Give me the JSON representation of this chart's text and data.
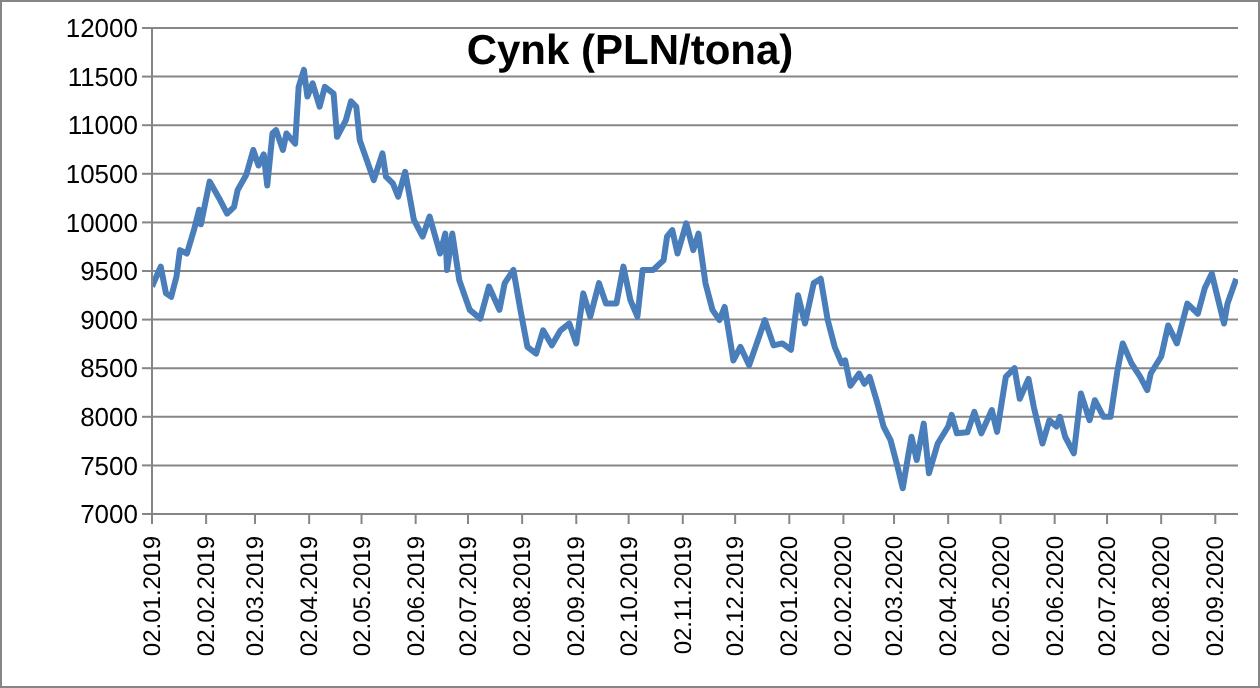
{
  "chart_data": {
    "type": "line",
    "title": "Cynk (PLN/tona)",
    "x": [
      "2019-01-02",
      "2019-01-07",
      "2019-01-10",
      "2019-01-13",
      "2019-01-16",
      "2019-01-18",
      "2019-01-22",
      "2019-01-26",
      "2019-01-29",
      "2019-01-30",
      "2019-02-04",
      "2019-02-10",
      "2019-02-14",
      "2019-02-18",
      "2019-02-20",
      "2019-02-25",
      "2019-03-01",
      "2019-03-04",
      "2019-03-07",
      "2019-03-09",
      "2019-03-12",
      "2019-03-14",
      "2019-03-18",
      "2019-03-20",
      "2019-03-25",
      "2019-03-27",
      "2019-03-30",
      "2019-04-01",
      "2019-04-04",
      "2019-04-08",
      "2019-04-11",
      "2019-04-16",
      "2019-04-18",
      "2019-04-23",
      "2019-04-26",
      "2019-04-29",
      "2019-05-01",
      "2019-05-07",
      "2019-05-09",
      "2019-05-14",
      "2019-05-16",
      "2019-05-20",
      "2019-05-23",
      "2019-05-27",
      "2019-06-01",
      "2019-06-06",
      "2019-06-10",
      "2019-06-16",
      "2019-06-19",
      "2019-06-20",
      "2019-06-23",
      "2019-06-27",
      "2019-07-03",
      "2019-07-09",
      "2019-07-14",
      "2019-07-20",
      "2019-07-23",
      "2019-07-28",
      "2019-08-01",
      "2019-08-05",
      "2019-08-10",
      "2019-08-14",
      "2019-08-19",
      "2019-08-24",
      "2019-08-29",
      "2019-09-02",
      "2019-09-06",
      "2019-09-10",
      "2019-09-15",
      "2019-09-19",
      "2019-09-25",
      "2019-09-29",
      "2019-10-03",
      "2019-10-07",
      "2019-10-10",
      "2019-10-16",
      "2019-10-22",
      "2019-10-24",
      "2019-10-27",
      "2019-10-30",
      "2019-11-04",
      "2019-11-08",
      "2019-11-11",
      "2019-11-15",
      "2019-11-19",
      "2019-11-23",
      "2019-11-26",
      "2019-12-01",
      "2019-12-05",
      "2019-12-10",
      "2019-12-14",
      "2019-12-19",
      "2019-12-24",
      "2019-12-29",
      "2020-01-03",
      "2020-01-07",
      "2020-01-11",
      "2020-01-16",
      "2020-01-20",
      "2020-01-24",
      "2020-01-28",
      "2020-02-01",
      "2020-02-03",
      "2020-02-06",
      "2020-02-11",
      "2020-02-14",
      "2020-02-17",
      "2020-02-21",
      "2020-02-25",
      "2020-02-29",
      "2020-03-04",
      "2020-03-07",
      "2020-03-10",
      "2020-03-12",
      "2020-03-15",
      "2020-03-19",
      "2020-03-22",
      "2020-03-27",
      "2020-04-02",
      "2020-04-04",
      "2020-04-07",
      "2020-04-13",
      "2020-04-17",
      "2020-04-21",
      "2020-04-27",
      "2020-04-30",
      "2020-05-05",
      "2020-05-10",
      "2020-05-13",
      "2020-05-18",
      "2020-05-21",
      "2020-05-26",
      "2020-05-30",
      "2020-06-03",
      "2020-06-05",
      "2020-06-08",
      "2020-06-13",
      "2020-06-17",
      "2020-06-22",
      "2020-06-25",
      "2020-06-30",
      "2020-07-04",
      "2020-07-08",
      "2020-07-11",
      "2020-07-16",
      "2020-07-21",
      "2020-07-25",
      "2020-07-27",
      "2020-08-02",
      "2020-08-06",
      "2020-08-11",
      "2020-08-17",
      "2020-08-23",
      "2020-08-27",
      "2020-08-31",
      "2020-09-02",
      "2020-09-07",
      "2020-09-09",
      "2020-09-14"
    ],
    "series": [
      {
        "color": "#4a7ebb",
        "values": [
          9340,
          9545,
          9270,
          9235,
          9440,
          9715,
          9680,
          9920,
          10130,
          9980,
          10420,
          10230,
          10090,
          10160,
          10330,
          10490,
          10745,
          10585,
          10700,
          10380,
          10915,
          10950,
          10745,
          10915,
          10810,
          11395,
          11570,
          11295,
          11430,
          11190,
          11395,
          11325,
          10880,
          11050,
          11245,
          11190,
          10845,
          10540,
          10435,
          10710,
          10470,
          10400,
          10265,
          10520,
          10025,
          9855,
          10060,
          9680,
          9885,
          9510,
          9885,
          9405,
          9100,
          9010,
          9340,
          9100,
          9375,
          9510,
          9100,
          8720,
          8650,
          8890,
          8735,
          8890,
          8960,
          8755,
          9270,
          9030,
          9375,
          9165,
          9165,
          9545,
          9200,
          9030,
          9510,
          9510,
          9610,
          9855,
          9920,
          9680,
          9990,
          9715,
          9885,
          9375,
          9100,
          8995,
          9130,
          8580,
          8720,
          8530,
          8735,
          8995,
          8735,
          8755,
          8690,
          9250,
          8960,
          9375,
          9420,
          8995,
          8720,
          8550,
          8580,
          8320,
          8445,
          8340,
          8410,
          8170,
          7900,
          7760,
          7485,
          7265,
          7590,
          7795,
          7555,
          7930,
          7420,
          7725,
          7900,
          8020,
          7830,
          7840,
          8050,
          7830,
          8070,
          7845,
          8410,
          8500,
          8185,
          8390,
          8105,
          7725,
          7965,
          7900,
          8000,
          7795,
          7625,
          8240,
          7965,
          8170,
          8000,
          8000,
          8480,
          8755,
          8550,
          8410,
          8275,
          8445,
          8620,
          8940,
          8755,
          9165,
          9060,
          9325,
          9475,
          9325,
          8960,
          9165,
          9420
        ]
      }
    ],
    "xlim": [
      "2019-01-02",
      "2020-09-15"
    ],
    "xticks": [
      {
        "value": "2019-01-02",
        "label": "02.01.2019"
      },
      {
        "value": "2019-02-02",
        "label": "02.02.2019"
      },
      {
        "value": "2019-03-02",
        "label": "02.03.2019"
      },
      {
        "value": "2019-04-02",
        "label": "02.04.2019"
      },
      {
        "value": "2019-05-02",
        "label": "02.05.2019"
      },
      {
        "value": "2019-06-02",
        "label": "02.06.2019"
      },
      {
        "value": "2019-07-02",
        "label": "02.07.2019"
      },
      {
        "value": "2019-08-02",
        "label": "02.08.2019"
      },
      {
        "value": "2019-09-02",
        "label": "02.09.2019"
      },
      {
        "value": "2019-10-02",
        "label": "02.10.2019"
      },
      {
        "value": "2019-11-02",
        "label": "02.11.2019"
      },
      {
        "value": "2019-12-02",
        "label": "02.12.2019"
      },
      {
        "value": "2020-01-02",
        "label": "02.01.2020"
      },
      {
        "value": "2020-02-02",
        "label": "02.02.2020"
      },
      {
        "value": "2020-03-02",
        "label": "02.03.2020"
      },
      {
        "value": "2020-04-02",
        "label": "02.04.2020"
      },
      {
        "value": "2020-05-02",
        "label": "02.05.2020"
      },
      {
        "value": "2020-06-02",
        "label": "02.06.2020"
      },
      {
        "value": "2020-07-02",
        "label": "02.07.2020"
      },
      {
        "value": "2020-08-02",
        "label": "02.08.2020"
      },
      {
        "value": "2020-09-02",
        "label": "02.09.2020"
      }
    ],
    "ylim": [
      7000,
      12000
    ],
    "yticks": [
      7000,
      7500,
      8000,
      8500,
      9000,
      9500,
      10000,
      10500,
      11000,
      11500,
      12000
    ],
    "grid": "y"
  }
}
